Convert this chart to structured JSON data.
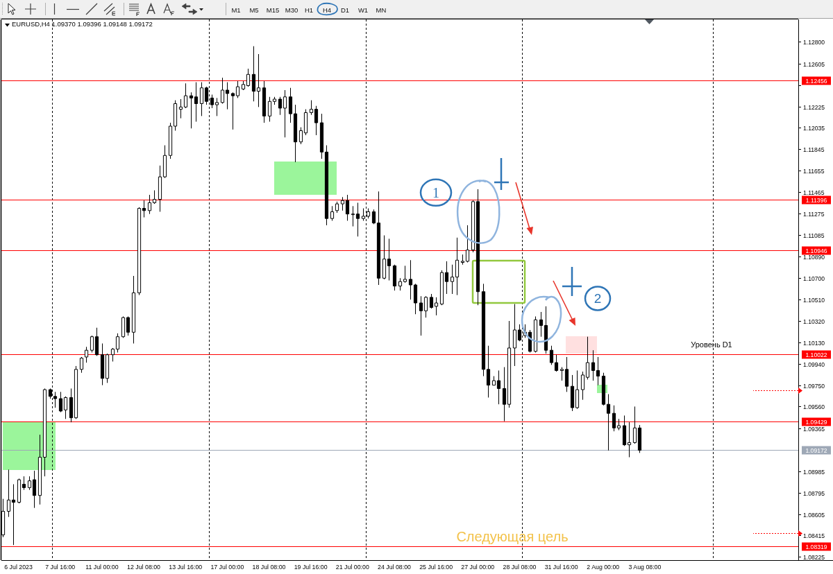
{
  "chart_data": {
    "type": "candlestick",
    "title": "EURUSD,H4 1.09370 1.09396 1.09148 1.09172",
    "color": "#000000",
    "categories": [
      null,
      null,
      null,
      "6 Jul 2023",
      null,
      null,
      null,
      null,
      null,
      null,
      null,
      "7 Jul 16:00",
      null,
      null,
      null,
      null,
      null,
      null,
      null,
      "11 Jul 00:00",
      null,
      null,
      null,
      null,
      null,
      null,
      null,
      "12 Jul 08:00",
      null,
      null,
      null,
      null,
      null,
      null,
      null,
      "13 Jul 16:00",
      null,
      null,
      null,
      null,
      null,
      null,
      null,
      "17 Jul 00:00",
      null,
      null,
      null,
      null,
      null,
      null,
      null,
      "18 Jul 08:00",
      null,
      null,
      null,
      null,
      null,
      null,
      null,
      "19 Jul 16:00",
      null,
      null,
      null,
      null,
      null,
      null,
      null,
      "21 Jul 00:00",
      null,
      null,
      null,
      null,
      null,
      null,
      null,
      "24 Jul 08:00",
      null,
      null,
      null,
      null,
      null,
      null,
      null,
      "25 Jul 16:00",
      null,
      null,
      null,
      null,
      null,
      null,
      null,
      "27 Jul 00:00",
      null,
      null,
      null,
      null,
      null,
      null,
      null,
      "28 Jul 08:00",
      null,
      null,
      null,
      null,
      null,
      null,
      null,
      "31 Jul 16:00",
      null,
      null,
      null,
      null,
      null,
      null,
      null,
      "2 Aug 00:00",
      null,
      null,
      null,
      null,
      null,
      null,
      null,
      "3 Aug 08:00",
      null,
      null,
      null,
      null,
      null,
      null,
      null,
      null,
      null,
      null,
      null,
      null,
      null,
      null,
      null,
      null,
      null,
      null,
      null,
      null,
      null,
      null,
      null,
      null,
      null,
      null,
      null,
      null,
      null
    ],
    "ohlc": [
      [
        1.0842,
        1.0874,
        1.084,
        1.0863
      ],
      [
        1.0863,
        1.09,
        1.0858,
        1.0873
      ],
      [
        1.0873,
        1.0887,
        1.0833,
        1.0871
      ],
      [
        1.0871,
        1.0892,
        1.087,
        1.0891
      ],
      [
        1.0887,
        1.0894,
        1.0882,
        1.0884
      ],
      [
        1.0884,
        1.0894,
        1.0882,
        1.089
      ],
      [
        1.0891,
        1.0899,
        1.0866,
        1.0877
      ],
      [
        1.0877,
        1.0931,
        1.0869,
        1.0911
      ],
      [
        1.0911,
        1.0972,
        1.0894,
        1.0971
      ],
      [
        1.0971,
        1.0972,
        1.0963,
        1.0965
      ],
      [
        1.0965,
        1.0969,
        1.0955,
        1.0963
      ],
      [
        1.0963,
        1.0969,
        1.0951,
        1.0952
      ],
      [
        1.0953,
        1.0965,
        1.0945,
        1.0964
      ],
      [
        1.0964,
        1.0972,
        1.0942,
        1.0946
      ],
      [
        1.0946,
        1.0992,
        1.0945,
        1.0989
      ],
      [
        1.0989,
        1.1,
        1.0986,
        1.0999
      ],
      [
        1.1,
        1.1009,
        1.0995,
        1.1006
      ],
      [
        1.1006,
        1.1019,
        1.1004,
        1.1018
      ],
      [
        1.1018,
        1.1026,
        1.1001,
        1.1002
      ],
      [
        1.1002,
        1.1012,
        1.0975,
        1.0981
      ],
      [
        1.0981,
        1.1003,
        1.0977,
        1.1002
      ],
      [
        1.1002,
        1.1008,
        1.0996,
        1.1007
      ],
      [
        1.1007,
        1.1021,
        1.1004,
        1.1018
      ],
      [
        1.1018,
        1.1036,
        1.1017,
        1.1035
      ],
      [
        1.1035,
        1.1036,
        1.1019,
        1.1022
      ],
      [
        1.1022,
        1.1072,
        1.1012,
        1.1057
      ],
      [
        1.1057,
        1.1133,
        1.1055,
        1.1132
      ],
      [
        1.1132,
        1.1139,
        1.1124,
        1.113
      ],
      [
        1.113,
        1.1144,
        1.1127,
        1.1137
      ],
      [
        1.1137,
        1.1148,
        1.1136,
        1.114
      ],
      [
        1.114,
        1.117,
        1.1129,
        1.116
      ],
      [
        1.116,
        1.1188,
        1.1159,
        1.1179
      ],
      [
        1.1179,
        1.1208,
        1.1176,
        1.1205
      ],
      [
        1.1205,
        1.1228,
        1.1201,
        1.1225
      ],
      [
        1.122,
        1.1229,
        1.1212,
        1.1222
      ],
      [
        1.1222,
        1.1243,
        1.1221,
        1.1232
      ],
      [
        1.1232,
        1.1235,
        1.1203,
        1.123
      ],
      [
        1.1231,
        1.1244,
        1.1209,
        1.1225
      ],
      [
        1.1225,
        1.1244,
        1.1214,
        1.1239
      ],
      [
        1.1239,
        1.124,
        1.1224,
        1.1227
      ],
      [
        1.123,
        1.1233,
        1.1221,
        1.1224
      ],
      [
        1.1224,
        1.123,
        1.1214,
        1.1226
      ],
      [
        1.1226,
        1.1248,
        1.1225,
        1.1237
      ],
      [
        1.1237,
        1.1244,
        1.122,
        1.1234
      ],
      [
        1.1234,
        1.1235,
        1.1202,
        1.1232
      ],
      [
        1.1232,
        1.1245,
        1.123,
        1.124
      ],
      [
        1.1238,
        1.1245,
        1.1237,
        1.1242
      ],
      [
        1.1241,
        1.1256,
        1.124,
        1.1251
      ],
      [
        1.1251,
        1.1276,
        1.1227,
        1.1236
      ],
      [
        1.1236,
        1.1269,
        1.1222,
        1.1239
      ],
      [
        1.1239,
        1.1245,
        1.1208,
        1.1214
      ],
      [
        1.1214,
        1.1231,
        1.1209,
        1.1227
      ],
      [
        1.1227,
        1.1231,
        1.1224,
        1.1229
      ],
      [
        1.1229,
        1.1231,
        1.1215,
        1.1221
      ],
      [
        1.1221,
        1.1237,
        1.1195,
        1.1231
      ],
      [
        1.1231,
        1.1239,
        1.1208,
        1.1216
      ],
      [
        1.1216,
        1.1224,
        1.1173,
        1.1191
      ],
      [
        1.1191,
        1.1204,
        1.1189,
        1.1201
      ],
      [
        1.1199,
        1.122,
        1.1197,
        1.1217
      ],
      [
        1.1217,
        1.1228,
        1.1215,
        1.122
      ],
      [
        1.122,
        1.1223,
        1.1197,
        1.1208
      ],
      [
        1.1208,
        1.1216,
        1.1176,
        1.1182
      ],
      [
        1.1182,
        1.1188,
        1.1117,
        1.1123
      ],
      [
        1.1123,
        1.1134,
        1.1121,
        1.1129
      ],
      [
        1.113,
        1.1138,
        1.1128,
        1.1136
      ],
      [
        1.1136,
        1.1142,
        1.113,
        1.1139
      ],
      [
        1.1139,
        1.1144,
        1.1121,
        1.1127
      ],
      [
        1.1127,
        1.1134,
        1.1116,
        1.1127
      ],
      [
        1.1127,
        1.1137,
        1.1107,
        1.1123
      ],
      [
        1.1123,
        1.1132,
        1.1121,
        1.1125
      ],
      [
        1.1125,
        1.1132,
        1.1123,
        1.1129
      ],
      [
        1.1129,
        1.1131,
        1.1118,
        1.1119
      ],
      [
        1.1119,
        1.1147,
        1.1064,
        1.107
      ],
      [
        1.107,
        1.1108,
        1.1069,
        1.1087
      ],
      [
        1.1087,
        1.1105,
        1.1068,
        1.1081
      ],
      [
        1.1081,
        1.1082,
        1.1059,
        1.1063
      ],
      [
        1.1063,
        1.107,
        1.1059,
        1.1067
      ],
      [
        1.1067,
        1.1081,
        1.1066,
        1.1069
      ],
      [
        1.1069,
        1.1086,
        1.1051,
        1.1064
      ],
      [
        1.1064,
        1.1065,
        1.1038,
        1.1048
      ],
      [
        1.1048,
        1.1054,
        1.1019,
        1.1041
      ],
      [
        1.1041,
        1.1054,
        1.1035,
        1.1053
      ],
      [
        1.1053,
        1.1056,
        1.1043,
        1.1044
      ],
      [
        1.1045,
        1.1053,
        1.1037,
        1.1048
      ],
      [
        1.1047,
        1.1077,
        1.1046,
        1.1075
      ],
      [
        1.1075,
        1.1085,
        1.1056,
        1.1067
      ],
      [
        1.1067,
        1.1082,
        1.1056,
        1.1071
      ],
      [
        1.1071,
        1.1106,
        1.1055,
        1.1086
      ],
      [
        1.1084,
        1.1091,
        1.1082,
        1.1085
      ],
      [
        1.1085,
        1.1117,
        1.1084,
        1.1095
      ],
      [
        1.1095,
        1.1139,
        1.1093,
        1.1138
      ],
      [
        1.1138,
        1.1149,
        1.1046,
        1.1058
      ],
      [
        1.1058,
        1.1065,
        1.0983,
        1.0989
      ],
      [
        1.0989,
        1.101,
        1.0964,
        1.0975
      ],
      [
        1.0975,
        1.0983,
        1.0975,
        1.0979
      ],
      [
        1.0979,
        1.0988,
        1.0958,
        1.0972
      ],
      [
        1.0972,
        1.0991,
        1.0943,
        1.0958
      ],
      [
        1.0958,
        1.1032,
        1.0955,
        1.1008
      ],
      [
        1.1008,
        1.1047,
        1.0992,
        1.1024
      ],
      [
        1.1024,
        1.1029,
        1.1014,
        1.1015
      ],
      [
        1.1019,
        1.1029,
        1.1017,
        1.1022
      ],
      [
        1.1022,
        1.1024,
        1.1004,
        1.1005
      ],
      [
        1.1005,
        1.1036,
        1.1004,
        1.1033
      ],
      [
        1.1033,
        1.104,
        1.1018,
        1.1028
      ],
      [
        1.1028,
        1.1045,
        1.1003,
        1.1006
      ],
      [
        1.1006,
        1.101,
        1.0993,
        1.0995
      ],
      [
        1.0995,
        1.1002,
        1.0987,
        1.0988
      ],
      [
        1.0988,
        1.0991,
        1.0979,
        1.0989
      ],
      [
        1.0989,
        1.1,
        1.0969,
        1.0974
      ],
      [
        1.0974,
        1.0984,
        1.0952,
        1.0955
      ],
      [
        1.0955,
        1.0988,
        1.0954,
        1.0971
      ],
      [
        1.0971,
        1.0987,
        1.0962,
        1.0984
      ],
      [
        1.0982,
        1.1018,
        1.098,
        1.0995
      ],
      [
        1.0995,
        1.1006,
        1.0979,
        1.0988
      ],
      [
        1.0988,
        1.1,
        1.0975,
        1.0983
      ],
      [
        1.0983,
        1.0986,
        1.0957,
        1.0958
      ],
      [
        1.0958,
        1.0967,
        1.0917,
        1.095
      ],
      [
        1.095,
        1.0957,
        1.0934,
        1.0937
      ],
      [
        1.0937,
        1.0945,
        1.0935,
        1.0939
      ],
      [
        1.0939,
        1.0948,
        1.0921,
        1.0922
      ],
      [
        1.0922,
        1.0942,
        1.0911,
        1.0924
      ],
      [
        1.0924,
        1.0956,
        1.0923,
        1.0937
      ],
      [
        1.0937,
        1.09396,
        1.09148,
        1.09172
      ],
      null,
      null,
      null,
      null,
      null,
      null,
      null,
      null,
      null,
      null,
      null,
      null,
      null,
      null,
      null,
      null,
      null,
      null,
      null,
      null,
      null,
      null,
      null,
      null,
      null,
      null,
      null,
      null,
      null,
      null
    ],
    "ylim": [
      1.08196,
      1.12998
    ],
    "yticks": [
      {
        "value": 1.128,
        "label": "1.12800"
      },
      1.12605,
      {
        "value": 1.12415,
        "label": null
      },
      1.12225,
      1.12035,
      1.11845,
      1.11655,
      1.11465,
      1.11275,
      1.11085,
      {
        "value": 1.1089,
        "label": "1.10890"
      },
      {
        "value": 1.107,
        "label": "1.10700"
      },
      {
        "value": 1.1051,
        "label": "1.10510"
      },
      {
        "value": 1.1032,
        "label": "1.10320"
      },
      {
        "value": 1.1013,
        "label": "1.10130"
      },
      {
        "value": 1.0994,
        "label": "1.09940"
      },
      {
        "value": 1.0975,
        "label": "1.09750"
      },
      {
        "value": 1.0956,
        "label": "1.09560"
      },
      1.09365,
      1.08985,
      1.08795,
      1.08605,
      1.08415,
      1.08225
    ],
    "ref_lines": [
      {
        "axis": "y",
        "value": 1.12456,
        "label": "1.12456",
        "color": "#ff0000"
      },
      {
        "axis": "y",
        "value": 1.11396,
        "label": "1.11396",
        "color": "#ff0000"
      },
      {
        "axis": "y",
        "value": 1.10946,
        "label": "1.10946",
        "color": "#ff0000"
      },
      {
        "axis": "y",
        "value": 1.10022,
        "label": "1.10022",
        "color": "#ff0000"
      },
      {
        "axis": "y",
        "value": 1.09429,
        "label": "1.09429",
        "color": "#ff0000"
      },
      {
        "axis": "y",
        "value": 1.08319,
        "label": "1.08319",
        "color": "#ff0000"
      },
      {
        "axis": "y",
        "value": 1.09172,
        "label": "1.09172",
        "color": "#9ea8b6"
      }
    ],
    "annotations": [
      "M1",
      "M5",
      "M15",
      "M30",
      "H1",
      "H4",
      "D1",
      "W1",
      "MN",
      {
        "text": "1",
        "y": 1.1146
      },
      {
        "text": "2",
        "y": 1.1052
      },
      {
        "text": "Уровень D1",
        "y": 1.10022
      },
      {
        "text": "Следующая цель",
        "y": 1.08319
      }
    ]
  }
}
